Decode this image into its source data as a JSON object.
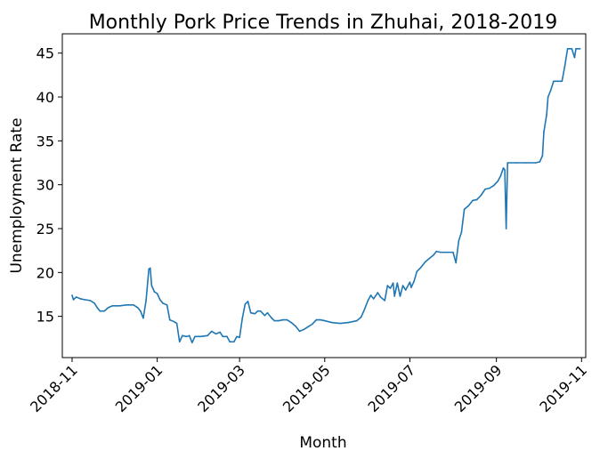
{
  "chart_data": {
    "type": "line",
    "title": "Monthly Pork Price Trends in Zhuhai, 2018-2019",
    "xlabel": "Month",
    "ylabel": "Unemployment Rate",
    "xlim": [
      "2018-10-25",
      "2019-11-04"
    ],
    "ylim": [
      10.3,
      47.2
    ],
    "grid": false,
    "legend": "none",
    "line_color": "#1f77b4",
    "x_ticks": [
      {
        "date": "2018-11-01",
        "label": "2018-11"
      },
      {
        "date": "2019-01-01",
        "label": "2019-01"
      },
      {
        "date": "2019-03-01",
        "label": "2019-03"
      },
      {
        "date": "2019-05-01",
        "label": "2019-05"
      },
      {
        "date": "2019-07-01",
        "label": "2019-07"
      },
      {
        "date": "2019-09-01",
        "label": "2019-09"
      },
      {
        "date": "2019-11-01",
        "label": "2019-11"
      }
    ],
    "y_ticks": [
      15,
      20,
      25,
      30,
      35,
      40,
      45
    ],
    "series": [
      {
        "points": [
          [
            "2018-11-01",
            17.4
          ],
          [
            "2018-11-02",
            16.9
          ],
          [
            "2018-11-04",
            17.2
          ],
          [
            "2018-11-07",
            17.0
          ],
          [
            "2018-11-10",
            16.9
          ],
          [
            "2018-11-14",
            16.8
          ],
          [
            "2018-11-17",
            16.5
          ],
          [
            "2018-11-19",
            16.0
          ],
          [
            "2018-11-21",
            15.6
          ],
          [
            "2018-11-24",
            15.6
          ],
          [
            "2018-11-27",
            16.0
          ],
          [
            "2018-11-30",
            16.2
          ],
          [
            "2018-12-05",
            16.2
          ],
          [
            "2018-12-10",
            16.3
          ],
          [
            "2018-12-15",
            16.3
          ],
          [
            "2018-12-18",
            16.0
          ],
          [
            "2018-12-20",
            15.6
          ],
          [
            "2018-12-22",
            14.8
          ],
          [
            "2018-12-24",
            16.8
          ],
          [
            "2018-12-26",
            20.4
          ],
          [
            "2018-12-27",
            20.5
          ],
          [
            "2018-12-28",
            18.5
          ],
          [
            "2018-12-30",
            17.8
          ],
          [
            "2019-01-01",
            17.6
          ],
          [
            "2019-01-03",
            16.9
          ],
          [
            "2019-01-05",
            16.5
          ],
          [
            "2019-01-08",
            16.3
          ],
          [
            "2019-01-10",
            14.6
          ],
          [
            "2019-01-13",
            14.4
          ],
          [
            "2019-01-15",
            14.2
          ],
          [
            "2019-01-17",
            12.1
          ],
          [
            "2019-01-19",
            12.8
          ],
          [
            "2019-01-22",
            12.7
          ],
          [
            "2019-01-24",
            12.8
          ],
          [
            "2019-01-26",
            12.0
          ],
          [
            "2019-01-28",
            12.7
          ],
          [
            "2019-02-01",
            12.7
          ],
          [
            "2019-02-06",
            12.8
          ],
          [
            "2019-02-09",
            13.3
          ],
          [
            "2019-02-12",
            13.0
          ],
          [
            "2019-02-15",
            13.2
          ],
          [
            "2019-02-17",
            12.7
          ],
          [
            "2019-02-20",
            12.7
          ],
          [
            "2019-02-22",
            12.1
          ],
          [
            "2019-02-25",
            12.1
          ],
          [
            "2019-02-27",
            12.7
          ],
          [
            "2019-03-01",
            12.6
          ],
          [
            "2019-03-03",
            14.8
          ],
          [
            "2019-03-05",
            16.4
          ],
          [
            "2019-03-07",
            16.7
          ],
          [
            "2019-03-09",
            15.4
          ],
          [
            "2019-03-12",
            15.3
          ],
          [
            "2019-03-14",
            15.6
          ],
          [
            "2019-03-16",
            15.6
          ],
          [
            "2019-03-19",
            15.1
          ],
          [
            "2019-03-21",
            15.4
          ],
          [
            "2019-03-24",
            14.8
          ],
          [
            "2019-03-26",
            14.5
          ],
          [
            "2019-03-29",
            14.5
          ],
          [
            "2019-04-01",
            14.6
          ],
          [
            "2019-04-04",
            14.6
          ],
          [
            "2019-04-07",
            14.3
          ],
          [
            "2019-04-10",
            13.9
          ],
          [
            "2019-04-13",
            13.3
          ],
          [
            "2019-04-16",
            13.5
          ],
          [
            "2019-04-19",
            13.8
          ],
          [
            "2019-04-22",
            14.1
          ],
          [
            "2019-04-25",
            14.6
          ],
          [
            "2019-04-28",
            14.6
          ],
          [
            "2019-05-01",
            14.5
          ],
          [
            "2019-05-06",
            14.3
          ],
          [
            "2019-05-12",
            14.2
          ],
          [
            "2019-05-18",
            14.3
          ],
          [
            "2019-05-24",
            14.5
          ],
          [
            "2019-05-27",
            14.9
          ],
          [
            "2019-05-29",
            15.6
          ],
          [
            "2019-06-01",
            16.8
          ],
          [
            "2019-06-03",
            17.4
          ],
          [
            "2019-06-05",
            17.0
          ],
          [
            "2019-06-08",
            17.7
          ],
          [
            "2019-06-10",
            17.2
          ],
          [
            "2019-06-13",
            16.8
          ],
          [
            "2019-06-15",
            18.5
          ],
          [
            "2019-06-17",
            18.2
          ],
          [
            "2019-06-19",
            18.8
          ],
          [
            "2019-06-20",
            17.3
          ],
          [
            "2019-06-22",
            18.8
          ],
          [
            "2019-06-24",
            17.3
          ],
          [
            "2019-06-26",
            18.5
          ],
          [
            "2019-06-28",
            18.0
          ],
          [
            "2019-07-01",
            18.9
          ],
          [
            "2019-07-02",
            18.3
          ],
          [
            "2019-07-04",
            19.0
          ],
          [
            "2019-07-06",
            20.1
          ],
          [
            "2019-07-09",
            20.6
          ],
          [
            "2019-07-12",
            21.2
          ],
          [
            "2019-07-15",
            21.6
          ],
          [
            "2019-07-18",
            22.0
          ],
          [
            "2019-07-20",
            22.4
          ],
          [
            "2019-07-23",
            22.3
          ],
          [
            "2019-07-27",
            22.3
          ],
          [
            "2019-08-01",
            22.3
          ],
          [
            "2019-08-03",
            21.1
          ],
          [
            "2019-08-05",
            23.6
          ],
          [
            "2019-08-07",
            24.6
          ],
          [
            "2019-08-09",
            27.2
          ],
          [
            "2019-08-12",
            27.6
          ],
          [
            "2019-08-15",
            28.2
          ],
          [
            "2019-08-18",
            28.3
          ],
          [
            "2019-08-21",
            28.8
          ],
          [
            "2019-08-24",
            29.5
          ],
          [
            "2019-08-27",
            29.6
          ],
          [
            "2019-08-30",
            29.9
          ],
          [
            "2019-09-02",
            30.4
          ],
          [
            "2019-09-04",
            31.0
          ],
          [
            "2019-09-06",
            31.9
          ],
          [
            "2019-09-07",
            31.7
          ],
          [
            "2019-09-08",
            25.0
          ],
          [
            "2019-09-09",
            32.5
          ],
          [
            "2019-09-15",
            32.5
          ],
          [
            "2019-09-22",
            32.5
          ],
          [
            "2019-09-29",
            32.5
          ],
          [
            "2019-10-02",
            32.6
          ],
          [
            "2019-10-04",
            33.3
          ],
          [
            "2019-10-05",
            36.0
          ],
          [
            "2019-10-07",
            38.0
          ],
          [
            "2019-10-08",
            40.0
          ],
          [
            "2019-10-10",
            40.8
          ],
          [
            "2019-10-12",
            41.8
          ],
          [
            "2019-10-15",
            41.8
          ],
          [
            "2019-10-18",
            41.8
          ],
          [
            "2019-10-20",
            43.5
          ],
          [
            "2019-10-22",
            45.5
          ],
          [
            "2019-10-25",
            45.5
          ],
          [
            "2019-10-27",
            44.5
          ],
          [
            "2019-10-28",
            45.5
          ],
          [
            "2019-10-31",
            45.5
          ]
        ]
      }
    ]
  }
}
